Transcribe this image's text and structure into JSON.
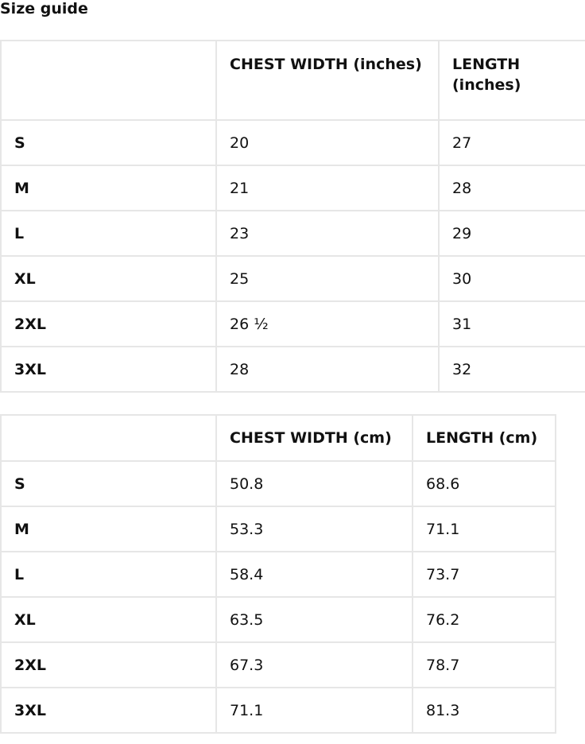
{
  "title": "Size guide",
  "tables": [
    {
      "headers": [
        "",
        "CHEST WIDTH (inches)",
        "LENGTH (inches)"
      ],
      "rows": [
        [
          "S",
          "20",
          "27"
        ],
        [
          "M",
          "21",
          "28"
        ],
        [
          "L",
          "23",
          "29"
        ],
        [
          "XL",
          "25",
          "30"
        ],
        [
          "2XL",
          "26 ½",
          "31"
        ],
        [
          "3XL",
          "28",
          "32"
        ]
      ]
    },
    {
      "headers": [
        "",
        "CHEST WIDTH (cm)",
        "LENGTH (cm)"
      ],
      "rows": [
        [
          "S",
          "50.8",
          "68.6"
        ],
        [
          "M",
          "53.3",
          "71.1"
        ],
        [
          "L",
          "58.4",
          "73.7"
        ],
        [
          "XL",
          "63.5",
          "76.2"
        ],
        [
          "2XL",
          "67.3",
          "78.7"
        ],
        [
          "3XL",
          "71.1",
          "81.3"
        ]
      ]
    }
  ]
}
